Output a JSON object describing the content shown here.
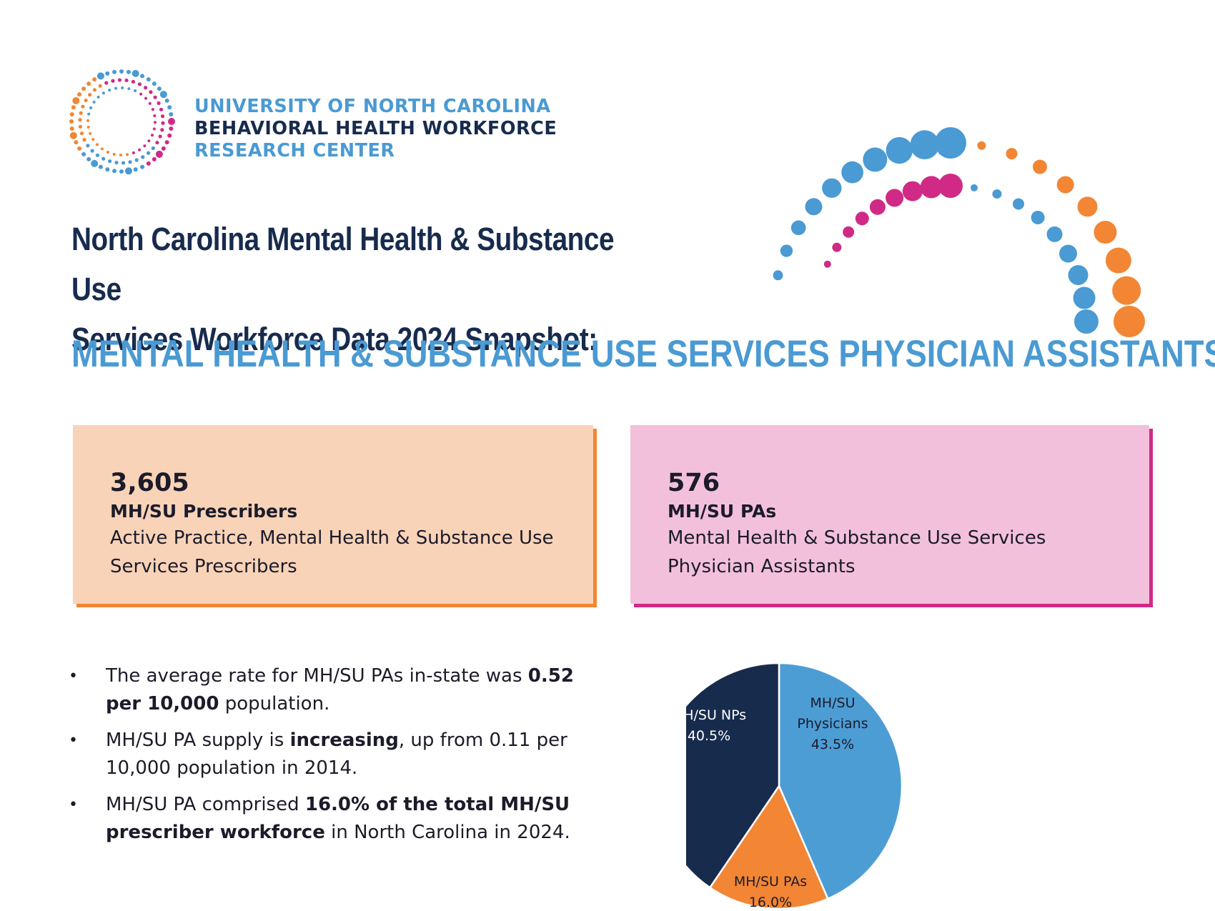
{
  "header": {
    "org_line1": "UNIVERSITY OF NORTH CAROLINA",
    "org_line2": "BEHAVIORAL HEALTH WORKFORCE",
    "org_line3": "RESEARCH CENTER",
    "title_line1": "North Carolina Mental Health & Substance Use",
    "title_line2": "Services Workforce Data 2024 Snapshot:",
    "subtitle": "MENTAL HEALTH & SUBSTANCE USE SERVICES PHYSICIAN ASSISTANTS"
  },
  "cards": [
    {
      "number": "3,605",
      "label": "MH/SU Prescribers",
      "description": "Active Practice, Mental Health & Substance Use Services Prescribers",
      "fill_color": "#f9d3b8",
      "accent_color": "#f28634"
    },
    {
      "number": "576",
      "label": "MH/SU PAs",
      "description": "Mental Health & Substance Use Services Physician Assistants",
      "fill_color": "#f3c0dc",
      "accent_color": "#d02a86"
    }
  ],
  "bullets": [
    {
      "bullet": "•",
      "parts": [
        {
          "text": "The average rate for MH/SU PAs in-state was ",
          "bold": false
        },
        {
          "text": "0.52 per 10,000",
          "bold": true
        },
        {
          "text": " population.",
          "bold": false
        }
      ]
    },
    {
      "bullet": "•",
      "parts": [
        {
          "text": "MH/SU PA supply is ",
          "bold": false
        },
        {
          "text": "increasing",
          "bold": true
        },
        {
          "text": ", up from 0.11 per 10,000 population in 2014.",
          "bold": false
        }
      ]
    },
    {
      "bullet": "•",
      "parts": [
        {
          "text": "MH/SU PA comprised ",
          "bold": false
        },
        {
          "text": "16.0% of the total MH/SU prescriber workforce",
          "bold": true
        },
        {
          "text": " in North Carolina in 2024.",
          "bold": false
        }
      ]
    }
  ],
  "chart_data": {
    "type": "pie",
    "slices": [
      {
        "label": "MH/SU Physicians",
        "value": 43.5,
        "value_label": "43.5%",
        "color": "#4d9dd5"
      },
      {
        "label": "MH/SU PAs",
        "value": 16.0,
        "value_label": "16.0%",
        "color": "#f28634"
      },
      {
        "label": "MH/SU NPs",
        "value": 40.5,
        "value_label": "40.5%",
        "color": "#172b4d"
      }
    ],
    "start": "12 o'clock",
    "direction": "clockwise"
  },
  "colors": {
    "navy": "#172b4d",
    "blue": "#4a9ad3",
    "orange": "#f28634",
    "pink": "#d02a86"
  }
}
